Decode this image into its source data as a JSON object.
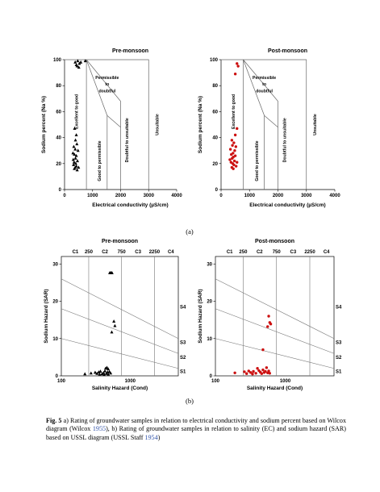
{
  "chart_data": [
    {
      "type": "scatter",
      "panel": "a",
      "title": "Pre-monsoon",
      "xlabel": "Electrical conductivity (µS/cm)",
      "ylabel": "Sodium percent (Na %)",
      "xlim": [
        0,
        4000
      ],
      "ylim": [
        0,
        100
      ],
      "x_ticks": [
        "0",
        "1000",
        "2000",
        "3000",
        "4000"
      ],
      "y_ticks": [
        "0",
        "20",
        "40",
        "60",
        "80",
        "100"
      ],
      "zones": [
        "Excellent to good",
        "Good to permissible",
        "Permissible to doubtful",
        "Doubtful to unsuitable",
        "Unsuitable"
      ],
      "marker": "triangle",
      "color": "#000000",
      "series": [
        {
          "points": [
            [
              380,
              98
            ],
            [
              420,
              96
            ],
            [
              470,
              99
            ],
            [
              530,
              97
            ],
            [
              580,
              98
            ],
            [
              740,
              99
            ],
            [
              450,
              95
            ],
            [
              510,
              94
            ],
            [
              360,
              47
            ],
            [
              420,
              42
            ],
            [
              390,
              38
            ],
            [
              330,
              33
            ],
            [
              440,
              35
            ],
            [
              380,
              31
            ],
            [
              480,
              30
            ],
            [
              300,
              28
            ],
            [
              350,
              27
            ],
            [
              420,
              26
            ],
            [
              390,
              24
            ],
            [
              310,
              23
            ],
            [
              460,
              22
            ],
            [
              340,
              21
            ],
            [
              400,
              20
            ],
            [
              320,
              19
            ],
            [
              420,
              18
            ],
            [
              380,
              17
            ],
            [
              350,
              16
            ],
            [
              450,
              15
            ],
            [
              500,
              17
            ]
          ]
        }
      ]
    },
    {
      "type": "scatter",
      "panel": "a",
      "title": "Post-monsoon",
      "xlabel": "Electrical conductivity (µS/cm)",
      "ylabel": "Sodium percent (Na %)",
      "xlim": [
        0,
        4000
      ],
      "ylim": [
        0,
        100
      ],
      "x_ticks": [
        "0",
        "1000",
        "2000",
        "3000",
        "4000"
      ],
      "y_ticks": [
        "0",
        "20",
        "40",
        "60",
        "80",
        "100"
      ],
      "zones": [
        "Excellent to good",
        "Good to permissible",
        "Permissible to doubtful",
        "Doubtful to unsuitable",
        "Unsuitable"
      ],
      "marker": "circle",
      "color": "#cc1111",
      "series": [
        {
          "points": [
            [
              560,
              97
            ],
            [
              600,
              95
            ],
            [
              500,
              89
            ],
            [
              560,
              47
            ],
            [
              500,
              42
            ],
            [
              380,
              38
            ],
            [
              450,
              36
            ],
            [
              400,
              34
            ],
            [
              520,
              33
            ],
            [
              330,
              31
            ],
            [
              480,
              30
            ],
            [
              420,
              28
            ],
            [
              360,
              27
            ],
            [
              500,
              26
            ],
            [
              430,
              25
            ],
            [
              390,
              24
            ],
            [
              310,
              23
            ],
            [
              470,
              22
            ],
            [
              350,
              21
            ],
            [
              410,
              20
            ],
            [
              450,
              19
            ],
            [
              380,
              17
            ],
            [
              430,
              16
            ],
            [
              530,
              18
            ],
            [
              560,
              21
            ]
          ]
        }
      ]
    },
    {
      "type": "scatter",
      "panel": "b",
      "title": "Pre-monsoon",
      "xlabel": "Salinity Hazard (Cond)",
      "ylabel": "Sodium Hazard (SAR)",
      "xscale": "log",
      "xlim": [
        100,
        5000
      ],
      "ylim": [
        0,
        32
      ],
      "x_ticks": [
        "100",
        "1000"
      ],
      "y_ticks": [
        "0",
        "10",
        "20",
        "30"
      ],
      "top_labels": [
        "C1",
        "250",
        "C2",
        "750",
        "C3",
        "2250",
        "C4"
      ],
      "right_labels": [
        "S4",
        "S3",
        "S2",
        "S1"
      ],
      "marker": "triangle",
      "color": "#000000",
      "series": [
        {
          "points": [
            [
              505,
              27.6
            ],
            [
              525,
              27.6
            ],
            [
              545,
              27.6
            ],
            [
              580,
              14.6
            ],
            [
              600,
              13.4
            ],
            [
              540,
              11.7
            ],
            [
              220,
              0.5
            ],
            [
              270,
              0.7
            ],
            [
              310,
              0.9
            ],
            [
              330,
              0.6
            ],
            [
              350,
              1.0
            ],
            [
              370,
              1.2
            ],
            [
              390,
              0.5
            ],
            [
              410,
              0.8
            ],
            [
              430,
              1.3
            ],
            [
              450,
              0.6
            ],
            [
              470,
              1.0
            ],
            [
              480,
              0.4
            ],
            [
              500,
              1.1
            ],
            [
              420,
              0.3
            ],
            [
              360,
              0.4
            ],
            [
              520,
              0.7
            ],
            [
              440,
              2.0
            ],
            [
              480,
              1.8
            ],
            [
              460,
              2.2
            ]
          ]
        }
      ]
    },
    {
      "type": "scatter",
      "panel": "b",
      "title": "Post-monsoon",
      "xlabel": "Salinity Hazard (Cond)",
      "ylabel": "Sodium Hazard (SAR)",
      "xscale": "log",
      "xlim": [
        100,
        5000
      ],
      "ylim": [
        0,
        32
      ],
      "x_ticks": [
        "100",
        "1000"
      ],
      "y_ticks": [
        "0",
        "10",
        "20",
        "30"
      ],
      "top_labels": [
        "C1",
        "250",
        "C2",
        "750",
        "C3",
        "2250",
        "C4"
      ],
      "right_labels": [
        "S4",
        "S3",
        "S2",
        "S1"
      ],
      "marker": "circle",
      "color": "#cc1111",
      "series": [
        {
          "points": [
            [
              580,
              16.0
            ],
            [
              600,
              14.3
            ],
            [
              620,
              13.9
            ],
            [
              560,
              13.2
            ],
            [
              480,
              7.0
            ],
            [
              190,
              0.8
            ],
            [
              260,
              1.1
            ],
            [
              280,
              0.6
            ],
            [
              300,
              1.3
            ],
            [
              320,
              0.9
            ],
            [
              350,
              1.2
            ],
            [
              380,
              0.7
            ],
            [
              420,
              1.4
            ],
            [
              440,
              1.0
            ],
            [
              460,
              0.6
            ],
            [
              480,
              1.6
            ],
            [
              500,
              0.9
            ],
            [
              520,
              1.2
            ],
            [
              540,
              2.2
            ],
            [
              560,
              0.8
            ],
            [
              580,
              1.3
            ],
            [
              400,
              2.0
            ],
            [
              340,
              0.5
            ],
            [
              600,
              0.7
            ]
          ]
        }
      ]
    }
  ],
  "panel_labels": {
    "a": "(a)",
    "b": "(b)"
  },
  "caption": {
    "fig_label": "Fig. 5",
    "text_1": " a) Rating of groundwater samples in relation to electrical conductivity and sodium percent based on Wilcox diagram (Wilcox ",
    "ref_1": "1955",
    "text_2": "), b) Rating of groundwater samples in relation to salinity (EC) and sodium hazard (SAR) based on USSL diagram (USSL Staff ",
    "ref_2": "1954",
    "text_3": ")"
  }
}
